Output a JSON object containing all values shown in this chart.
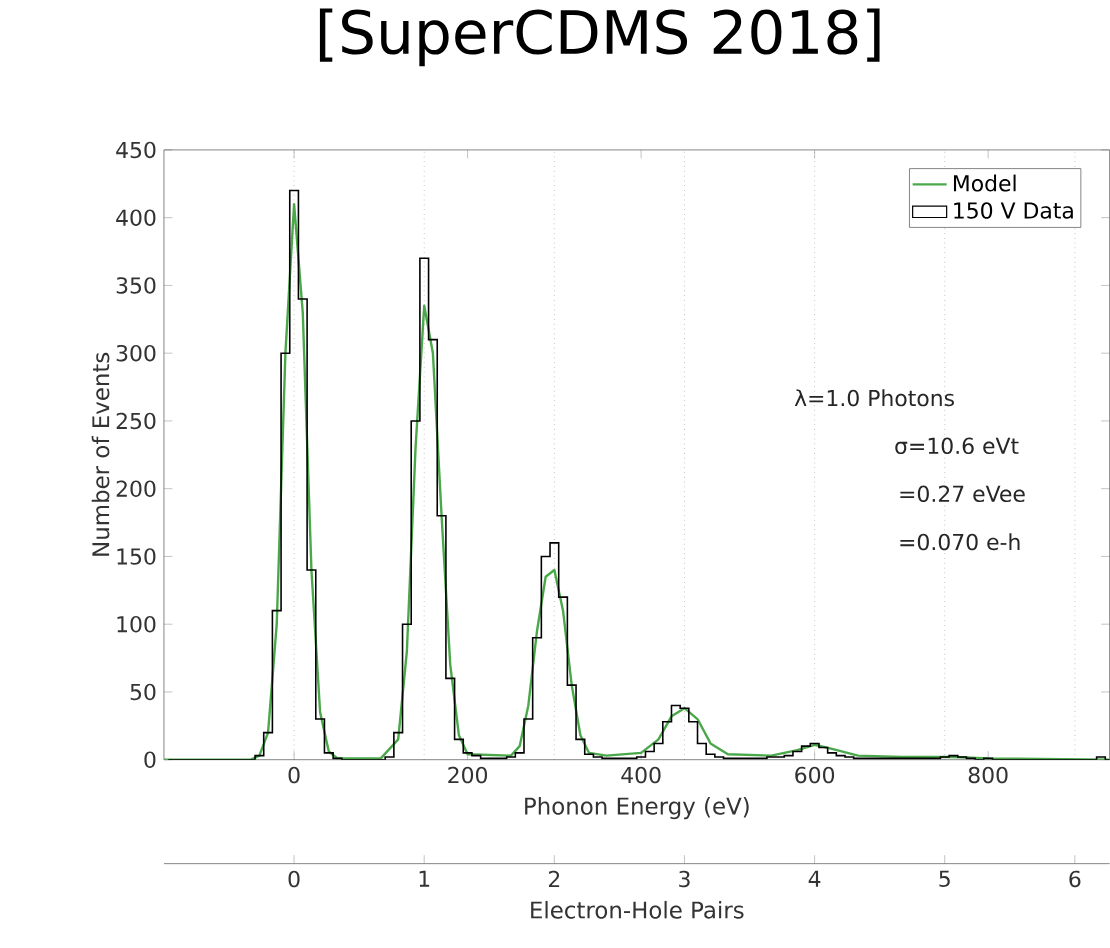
{
  "chart_data": {
    "type": "histogram",
    "title": "[SuperCDMS 2018]",
    "xlabel": "Phonon Energy (eV)",
    "ylabel": "Number of Events",
    "x2label": "Electron-Hole Pairs",
    "xlim": [
      -150,
      940
    ],
    "xticks": [
      0,
      200,
      400,
      600,
      800
    ],
    "ylim": [
      0,
      450
    ],
    "yticks": [
      0,
      50,
      100,
      150,
      200,
      250,
      300,
      350,
      400,
      450
    ],
    "x2lim": [
      -1,
      6.267
    ],
    "x2ticks": [
      0,
      1,
      2,
      3,
      4,
      5,
      6
    ],
    "grid": "x",
    "legend": "top right",
    "annotations": [
      "λ=1.0 Photons",
      "σ=10.6 eVt",
      "=0.27 eVee",
      "=0.070 e-h"
    ],
    "series": [
      {
        "name": "Model",
        "type": "line",
        "color": "#4aa84a",
        "x": [
          -150,
          -50,
          -40,
          -30,
          -20,
          -10,
          0,
          10,
          20,
          30,
          40,
          50,
          100,
          120,
          130,
          140,
          150,
          160,
          170,
          180,
          190,
          200,
          250,
          260,
          270,
          280,
          290,
          300,
          310,
          320,
          330,
          340,
          360,
          400,
          420,
          435,
          450,
          465,
          480,
          500,
          550,
          580,
          600,
          620,
          650,
          700,
          760,
          800,
          940
        ],
        "values": [
          0,
          0,
          3,
          20,
          100,
          300,
          410,
          330,
          140,
          35,
          6,
          1,
          1,
          15,
          80,
          230,
          335,
          300,
          180,
          70,
          18,
          4,
          3,
          10,
          40,
          95,
          135,
          140,
          110,
          55,
          18,
          5,
          3,
          5,
          15,
          32,
          38,
          30,
          12,
          4,
          3,
          7,
          11,
          8,
          3,
          2,
          2,
          1,
          0
        ]
      },
      {
        "name": "150 V Data",
        "type": "histogram",
        "color": "#000000",
        "bins": [
          -145,
          -135,
          -125,
          -115,
          -105,
          -95,
          -85,
          -75,
          -65,
          -55,
          -45,
          -35,
          -25,
          -15,
          -5,
          5,
          15,
          25,
          35,
          45,
          55,
          65,
          75,
          85,
          95,
          105,
          115,
          125,
          135,
          145,
          155,
          165,
          175,
          185,
          195,
          205,
          215,
          225,
          235,
          245,
          255,
          265,
          275,
          285,
          295,
          305,
          315,
          325,
          335,
          345,
          355,
          365,
          375,
          385,
          395,
          405,
          415,
          425,
          435,
          445,
          455,
          465,
          475,
          485,
          495,
          505,
          515,
          525,
          535,
          545,
          555,
          565,
          575,
          585,
          595,
          605,
          615,
          625,
          635,
          645,
          655,
          665,
          675,
          685,
          695,
          705,
          715,
          725,
          735,
          745,
          755,
          765,
          775,
          785,
          795,
          805,
          815,
          825,
          835,
          845,
          855,
          865,
          875,
          885,
          895,
          905,
          915,
          925,
          935,
          945
        ],
        "values": [
          0,
          0,
          0,
          0,
          0,
          0,
          0,
          0,
          0,
          0,
          3,
          20,
          110,
          300,
          420,
          340,
          140,
          30,
          5,
          1,
          0,
          0,
          0,
          0,
          0,
          2,
          20,
          100,
          250,
          370,
          310,
          180,
          60,
          15,
          5,
          3,
          1,
          1,
          1,
          2,
          5,
          30,
          90,
          150,
          160,
          120,
          55,
          15,
          4,
          2,
          1,
          1,
          1,
          1,
          2,
          6,
          12,
          28,
          40,
          38,
          28,
          12,
          4,
          2,
          1,
          1,
          1,
          1,
          1,
          2,
          2,
          3,
          6,
          10,
          12,
          9,
          5,
          3,
          2,
          1,
          1,
          1,
          1,
          1,
          1,
          1,
          1,
          1,
          1,
          2,
          3,
          2,
          1,
          0,
          1,
          0,
          0,
          0,
          0,
          0,
          0,
          0,
          0,
          0,
          0,
          0,
          0,
          2,
          0
        ]
      }
    ]
  }
}
